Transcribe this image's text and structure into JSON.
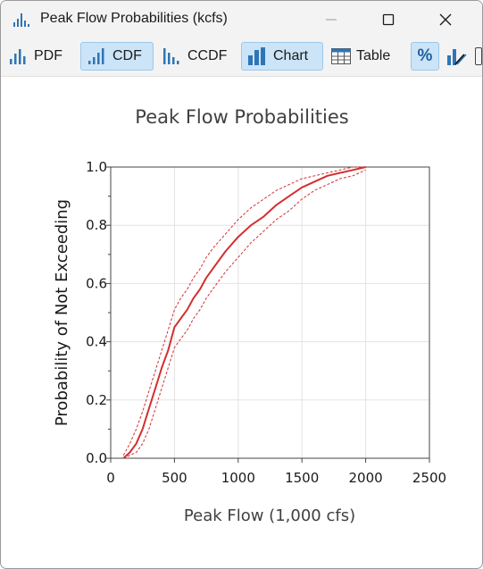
{
  "window": {
    "title": "Peak Flow Probabilities (kcfs)",
    "icons": {
      "app": "bar-chart-icon",
      "minimize": "minimize-icon",
      "maximize": "maximize-icon",
      "close": "close-icon"
    }
  },
  "toolbar": {
    "pdf_label": "PDF",
    "cdf_label": "CDF",
    "ccdf_label": "CCDF",
    "chart_label": "Chart",
    "table_label": "Table",
    "percent_label": "%",
    "active_buttons": [
      "CDF",
      "Chart",
      "%"
    ],
    "accent_color": "#2e75b6",
    "active_background": "#cce4f7"
  },
  "chart_data": {
    "type": "line",
    "title": "Peak Flow Probabilities",
    "xlabel": "Peak Flow (1,000 cfs)",
    "ylabel": "Probability of Not Exceeding",
    "xlim": [
      0,
      2500
    ],
    "ylim": [
      0,
      1
    ],
    "xticks": [
      "0",
      "500",
      "1000",
      "1500",
      "2000",
      "2500"
    ],
    "yticks": [
      "0.0",
      "0.2",
      "0.4",
      "0.6",
      "0.8",
      "1.0"
    ],
    "grid": true,
    "legend": "none",
    "series": [
      {
        "style": "solid",
        "color": "#d32f2f",
        "x": [
          100,
          150,
          200,
          250,
          300,
          350,
          400,
          450,
          500,
          550,
          600,
          650,
          700,
          750,
          800,
          900,
          1000,
          1100,
          1200,
          1300,
          1400,
          1500,
          1600,
          1700,
          1800,
          1900,
          2000
        ],
        "y": [
          0.0,
          0.02,
          0.05,
          0.1,
          0.17,
          0.24,
          0.31,
          0.37,
          0.45,
          0.48,
          0.51,
          0.55,
          0.58,
          0.62,
          0.65,
          0.71,
          0.76,
          0.8,
          0.83,
          0.87,
          0.9,
          0.93,
          0.95,
          0.97,
          0.98,
          0.99,
          1.0
        ]
      },
      {
        "style": "dashed",
        "color": "#d32f2f",
        "x": [
          100,
          150,
          200,
          250,
          300,
          350,
          400,
          450,
          500,
          550,
          600,
          650,
          700,
          750,
          800,
          900,
          1000,
          1100,
          1200,
          1300,
          1400,
          1500,
          1600,
          1700,
          1800,
          1900,
          2000
        ],
        "y": [
          0.01,
          0.05,
          0.1,
          0.16,
          0.23,
          0.3,
          0.37,
          0.44,
          0.51,
          0.55,
          0.58,
          0.62,
          0.65,
          0.69,
          0.72,
          0.77,
          0.82,
          0.86,
          0.89,
          0.92,
          0.94,
          0.96,
          0.97,
          0.98,
          0.99,
          1.0,
          1.0
        ]
      },
      {
        "style": "dashed",
        "color": "#d32f2f",
        "x": [
          100,
          150,
          200,
          250,
          300,
          350,
          400,
          450,
          500,
          550,
          600,
          650,
          700,
          750,
          800,
          900,
          1000,
          1100,
          1200,
          1300,
          1400,
          1500,
          1600,
          1700,
          1800,
          1900,
          2000
        ],
        "y": [
          0.0,
          0.01,
          0.02,
          0.05,
          0.1,
          0.17,
          0.24,
          0.31,
          0.38,
          0.41,
          0.44,
          0.48,
          0.51,
          0.55,
          0.58,
          0.64,
          0.69,
          0.74,
          0.78,
          0.82,
          0.85,
          0.89,
          0.92,
          0.94,
          0.96,
          0.97,
          0.99
        ]
      }
    ]
  }
}
